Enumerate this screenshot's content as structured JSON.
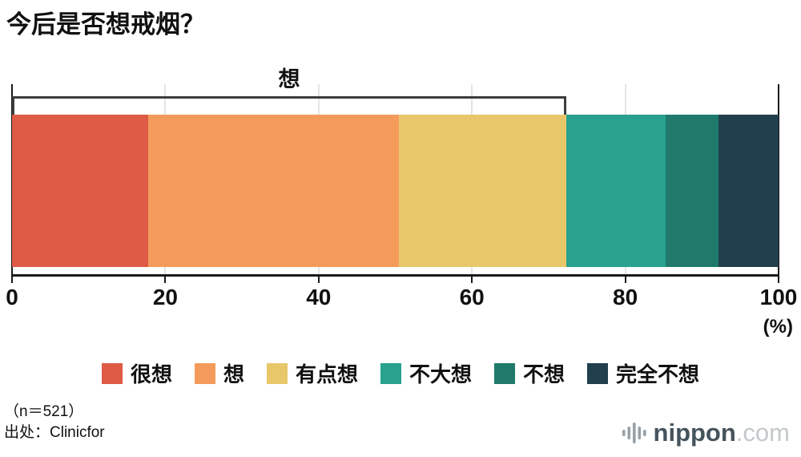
{
  "title": "今后是否想戒烟？",
  "chart_data": {
    "type": "bar",
    "variant": "stacked-horizontal",
    "title": "今后是否想戒烟？",
    "categories": [
      "很想",
      "想",
      "有点想",
      "不大想",
      "不想",
      "完全不想"
    ],
    "values": [
      17.8,
      32.7,
      21.8,
      13.0,
      6.9,
      7.8
    ],
    "colors": [
      "#DE5B45",
      "#F49B5C",
      "#E8C76A",
      "#29A18F",
      "#1F7A6B",
      "#213F4D"
    ],
    "xlim": [
      0,
      100
    ],
    "x_ticks": [
      0,
      20,
      40,
      60,
      80,
      100
    ],
    "x_unit": "(%)",
    "grid": true,
    "legend_position": "bottom",
    "annotation": {
      "label": "想",
      "from_pct": 0,
      "to_pct": 72.3
    }
  },
  "footnotes": {
    "n": "（n＝521）",
    "source": "出处：Clinicfor"
  },
  "logo": {
    "name": "nippon",
    "tld": ".com"
  }
}
